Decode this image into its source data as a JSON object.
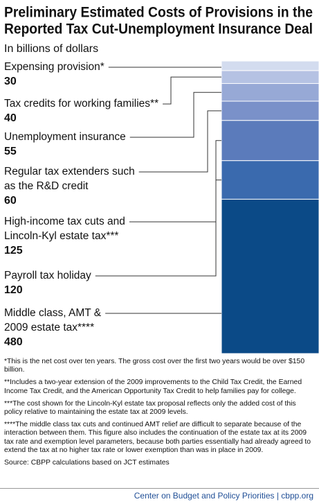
{
  "chart_data": {
    "type": "stacked_bar",
    "title": [
      "Preliminary Estimated Costs of Provisions in the",
      "Reported Tax Cut-Unemployment Insurance Deal"
    ],
    "subtitle": "In billions of dollars",
    "categories": [
      [
        "Expensing provision*"
      ],
      [
        "Tax credits for working families**"
      ],
      [
        "Unemployment insurance"
      ],
      [
        "Regular tax extenders such",
        "as the R&D credit"
      ],
      [
        "High-income tax cuts and",
        "Lincoln-Kyl estate tax***"
      ],
      [
        "Payroll tax holiday"
      ],
      [
        "Middle class, AMT &",
        "2009 estate tax****"
      ]
    ],
    "values": [
      30,
      40,
      55,
      60,
      125,
      120,
      480
    ],
    "colors": [
      "#d3dcef",
      "#b5c2e3",
      "#97a9d6",
      "#7a91c9",
      "#5b7bbb",
      "#3a6aae",
      "#0b4a87"
    ]
  },
  "notes": [
    "*This is the net cost over ten years.  The gross cost over the first two years would be over $150 billion.",
    "**Includes a two-year extension of the 2009 improvements to the Child Tax Credit, the Earned Income Tax Credit, and the American Opportunity Tax Credit to help families pay for college.",
    "***The cost shown for the Lincoln-Kyl estate tax proposal reflects only the added cost of this policy relative to maintaining the estate tax at 2009 levels.",
    "****The middle class tax cuts and continued AMT relief are difficult to separate because of the interaction between them.  This figure also includes the continuation of the estate tax at its 2009 tax rate and exemption level parameters, because both parties essentially had already agreed to extend the tax at no higher tax rate or lower exemption than was in place in 2009."
  ],
  "source": "Source: CBPP calculations based on JCT estimates",
  "footer": "Center on Budget and Policy Priorities | cbpp.org"
}
